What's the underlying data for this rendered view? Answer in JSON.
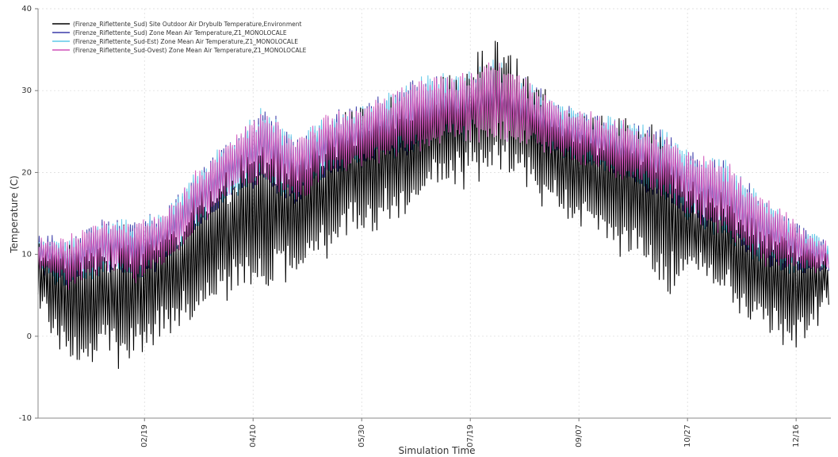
{
  "chart_data": {
    "type": "line",
    "title": "",
    "xlabel": "Simulation Time",
    "ylabel": "Temperature (C)",
    "ylim": [
      -10,
      40
    ],
    "yticks": [
      -10,
      0,
      10,
      20,
      30,
      40
    ],
    "xlim": [
      "01-01",
      "12-31"
    ],
    "xticks": [
      "02/19",
      "04/10",
      "05/30",
      "07/19",
      "09/07",
      "10/27",
      "12/16"
    ],
    "grid": true,
    "legend_position": "top-left",
    "series": [
      {
        "name": "(Firenze_Riflettente_Sud) Site Outdoor Air Drybulb Temperature,Environment",
        "color": "#000000",
        "x": [
          "01-01",
          "01-15",
          "01-31",
          "02-15",
          "02-28",
          "03-15",
          "03-31",
          "04-15",
          "04-30",
          "05-15",
          "05-30",
          "06-15",
          "06-30",
          "07-15",
          "07-31",
          "08-15",
          "08-31",
          "09-15",
          "09-30",
          "10-15",
          "10-31",
          "11-15",
          "11-30",
          "12-15",
          "12-31"
        ],
        "min": [
          3,
          -3,
          -3,
          -3,
          0,
          2,
          5,
          6,
          8,
          11,
          13,
          15,
          18,
          19,
          21,
          18,
          15,
          13,
          10,
          5,
          8,
          5,
          2,
          -2,
          4
        ],
        "max": [
          12,
          11,
          12,
          13,
          13,
          17,
          20,
          24,
          22,
          25,
          28,
          28,
          30,
          32,
          36,
          33,
          27,
          26,
          26,
          25,
          18,
          17,
          14,
          13,
          10
        ]
      },
      {
        "name": "(Firenze_Riflettente_Sud) Zone Mean Air Temperature,Z1_MONOLOCALE",
        "color": "#3a3aa8",
        "x": [
          "01-01",
          "01-15",
          "01-31",
          "02-15",
          "02-28",
          "03-15",
          "03-31",
          "04-15",
          "04-30",
          "05-15",
          "05-30",
          "06-15",
          "06-30",
          "07-15",
          "07-31",
          "08-15",
          "08-31",
          "09-15",
          "09-30",
          "10-15",
          "10-31",
          "11-15",
          "11-30",
          "12-15",
          "12-31"
        ],
        "min": [
          8,
          6,
          8,
          7,
          9,
          13,
          17,
          19,
          16,
          20,
          21,
          22,
          23,
          24,
          24,
          23,
          22,
          21,
          19,
          17,
          14,
          12,
          9,
          8,
          8
        ],
        "max": [
          12,
          12,
          14,
          14,
          15,
          20,
          24,
          28,
          24,
          27,
          28,
          30,
          32,
          32,
          34,
          31,
          28,
          27,
          26,
          25,
          22,
          21,
          17,
          14,
          11
        ]
      },
      {
        "name": "(Firenze_Riflettente_Sud-Est) Zone Mean Air Temperature,Z1_MONOLOCALE",
        "color": "#5ec8e8",
        "x": [
          "01-01",
          "01-15",
          "01-31",
          "02-15",
          "02-28",
          "03-15",
          "03-31",
          "04-15",
          "04-30",
          "05-15",
          "05-30",
          "06-15",
          "06-30",
          "07-15",
          "07-31",
          "08-15",
          "08-31",
          "09-15",
          "09-30",
          "10-15",
          "10-31",
          "11-15",
          "11-30",
          "12-15",
          "12-31"
        ],
        "min": [
          8,
          6,
          8,
          7,
          9,
          13,
          17,
          19,
          16,
          20,
          21,
          22,
          23,
          24,
          24,
          23,
          22,
          21,
          19,
          17,
          14,
          12,
          9,
          8,
          8
        ],
        "max": [
          12,
          12,
          14,
          14,
          15,
          20,
          24,
          28,
          24,
          27,
          28,
          30,
          32,
          32,
          34,
          31,
          28,
          27,
          26,
          25,
          22,
          21,
          17,
          14,
          11
        ]
      },
      {
        "name": "(Firenze_Riflettente_Sud-Ovest) Zone Mean Air Temperature,Z1_MONOLOCALE",
        "color": "#d050b8",
        "x": [
          "01-01",
          "01-15",
          "01-31",
          "02-15",
          "02-28",
          "03-15",
          "03-31",
          "04-15",
          "04-30",
          "05-15",
          "05-30",
          "06-15",
          "06-30",
          "07-15",
          "07-31",
          "08-15",
          "08-31",
          "09-15",
          "09-30",
          "10-15",
          "10-31",
          "11-15",
          "11-30",
          "12-15",
          "12-31"
        ],
        "min": [
          8,
          6,
          8,
          7,
          9,
          13,
          17,
          19,
          16,
          20,
          21,
          22,
          23,
          24,
          24,
          23,
          22,
          21,
          19,
          17,
          14,
          12,
          9,
          8,
          8
        ],
        "max": [
          12,
          12,
          14,
          14,
          15,
          20,
          24,
          28,
          24,
          27,
          28,
          30,
          32,
          32,
          34,
          31,
          28,
          27,
          26,
          25,
          22,
          21,
          17,
          14,
          11
        ]
      }
    ]
  }
}
